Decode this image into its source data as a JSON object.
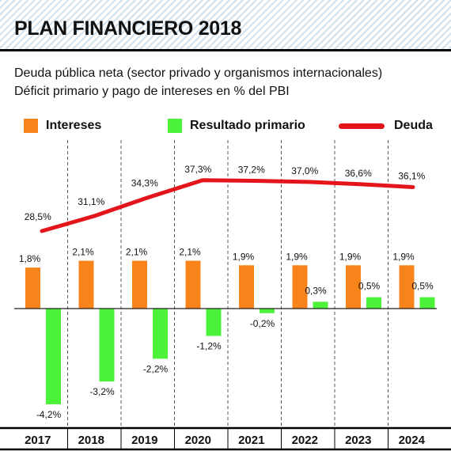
{
  "header": {
    "title": "PLAN FINANCIERO 2018",
    "subtitle_line1": "Deuda pública neta (sector privado y organismos internacionales)",
    "subtitle_line2": "Déficit primario y pago de intereses en % del PBI"
  },
  "colors": {
    "intereses": "#f7841b",
    "resultado": "#4cf23a",
    "deuda": "#e4141b",
    "grid": "#555555",
    "stripes": "#cfe0ee"
  },
  "chart_data": {
    "type": "bar",
    "categories": [
      "2017",
      "2018",
      "2019",
      "2020",
      "2021",
      "2022",
      "2023",
      "2024"
    ],
    "series": [
      {
        "name": "Intereses",
        "type": "bar",
        "values": [
          1.8,
          2.1,
          2.1,
          2.1,
          1.9,
          1.9,
          1.9,
          1.9
        ],
        "labels": [
          "1,8%",
          "2,1%",
          "2,1%",
          "2,1%",
          "1,9%",
          "1,9%",
          "1,9%",
          "1,9%"
        ]
      },
      {
        "name": "Resultado primario",
        "type": "bar",
        "values": [
          -4.2,
          -3.2,
          -2.2,
          -1.2,
          -0.2,
          0.3,
          0.5,
          0.5
        ],
        "labels": [
          "-4,2%",
          "-3,2%",
          "-2,2%",
          "-1,2%",
          "-0,2%",
          "0,3%",
          "0,5%",
          "0,5%"
        ]
      },
      {
        "name": "Deuda",
        "type": "line",
        "values": [
          28.5,
          31.1,
          34.3,
          37.3,
          37.2,
          37.0,
          36.6,
          36.1
        ],
        "labels": [
          "28,5%",
          "31,1%",
          "34,3%",
          "37,3%",
          "37,2%",
          "37,0%",
          "36,6%",
          "36,1%"
        ]
      }
    ],
    "legend_position": "top",
    "grid": "vertical dashed separators"
  }
}
